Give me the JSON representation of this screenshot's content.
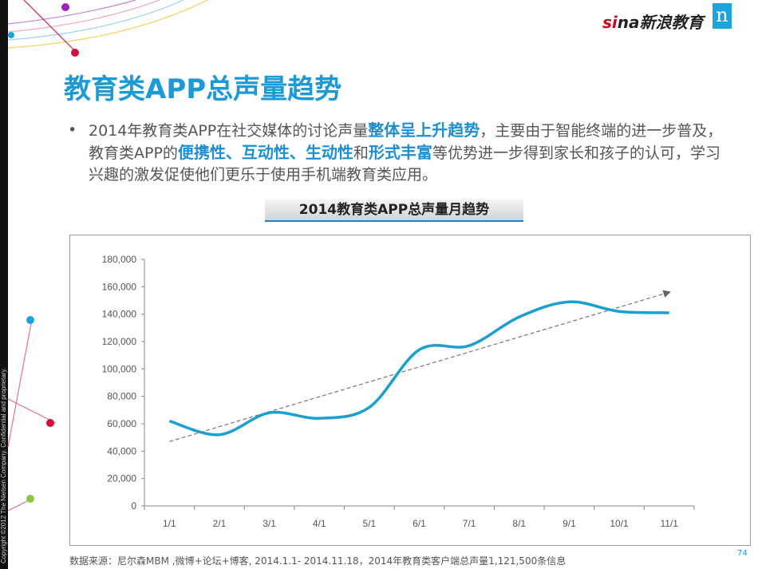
{
  "header": {
    "logo_text": "sina新浪教育",
    "brand_mark": "n"
  },
  "title": "教育类APP总声量趋势",
  "bullet": {
    "p1": "2014年教育类APP在社交媒体的讨论声量",
    "h1": "整体呈上升趋势",
    "p2": "，主要由于智能终端的进一步普及，教育类APP的",
    "h2": "便携性、互动性、生动性",
    "p3": "和",
    "h3": "形式丰富",
    "p4": "等优势进一步得到家长和孩子的认可，学习兴趣的激发促使他们更乐于使用手机端教育类应用。"
  },
  "chart_data": {
    "type": "line",
    "title": "2014教育类APP总声量月趋势",
    "categories": [
      "1/1",
      "2/1",
      "3/1",
      "4/1",
      "5/1",
      "6/1",
      "7/1",
      "8/1",
      "9/1",
      "10/1",
      "11/1"
    ],
    "series": [
      {
        "name": "总声量",
        "color": "#1aa0d0",
        "values": [
          62000,
          52000,
          68000,
          64000,
          72000,
          114000,
          117000,
          138000,
          149000,
          142000,
          141000
        ]
      }
    ],
    "trendline": {
      "start": 47000,
      "end": 156000,
      "style": "dashed-arrow",
      "color": "#777777"
    },
    "ylim": [
      0,
      180000
    ],
    "yticks": [
      "0",
      "20,000",
      "40,000",
      "60,000",
      "80,000",
      "100,000",
      "120,000",
      "140,000",
      "160,000",
      "180,000"
    ],
    "grid": false,
    "xlabel": "",
    "ylabel": ""
  },
  "footer": {
    "source": "数据来源：尼尔森MBM ,微博+论坛+博客, 2014.1.1- 2014.11.18，2014年教育类客户端总声量1,121,500条信息",
    "page": "74",
    "copyright": "Copyright ©2012 The Nielsen Company. Confidential and proprietary."
  }
}
